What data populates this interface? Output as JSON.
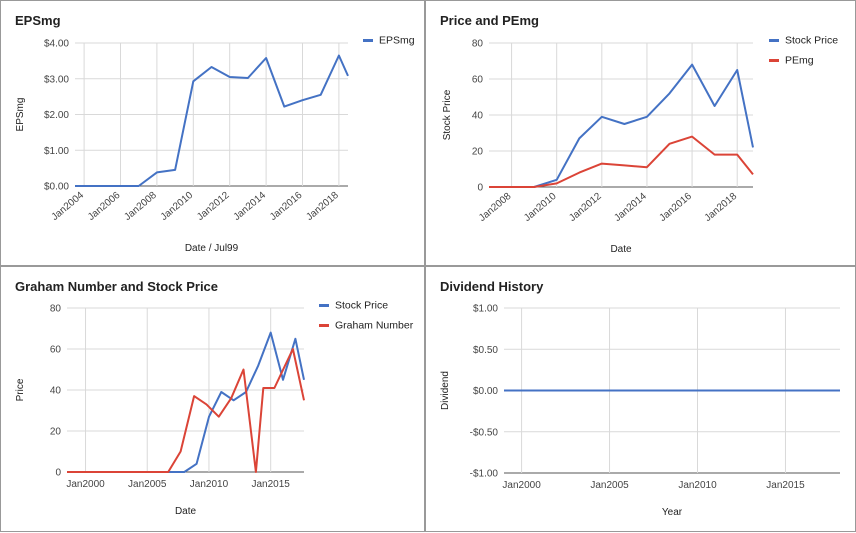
{
  "chart_data": [
    {
      "type": "line",
      "title": "EPSmg",
      "xlabel": "Date / Jul99",
      "ylabel": "EPSmg",
      "x_ticks": [
        "Jan2004",
        "Jan2006",
        "Jan2008",
        "Jan2010",
        "Jan2012",
        "Jan2014",
        "Jan2016",
        "Jan2018"
      ],
      "x_range": [
        2003.5,
        2018.5
      ],
      "y_ticks": [
        "$0.00",
        "$1.00",
        "$2.00",
        "$3.00",
        "$4.00"
      ],
      "ylim": [
        0,
        4
      ],
      "tick_rotation": "rotated",
      "grid": true,
      "legend_position": "right",
      "series": [
        {
          "name": "EPSmg",
          "color": "#4472C4",
          "x": [
            2003.5,
            2004,
            2005,
            2006,
            2007,
            2008,
            2009,
            2010,
            2011,
            2012,
            2013,
            2014,
            2015,
            2016,
            2017,
            2018,
            2018.5
          ],
          "values": [
            0,
            0,
            0,
            0,
            0,
            0.38,
            0.45,
            2.93,
            3.33,
            3.05,
            3.02,
            3.58,
            2.22,
            2.4,
            2.55,
            3.65,
            3.08
          ]
        }
      ]
    },
    {
      "type": "line",
      "title": "Price and PEmg",
      "xlabel": "Date",
      "ylabel": "Stock Price",
      "x_ticks": [
        "Jan2008",
        "Jan2010",
        "Jan2012",
        "Jan2014",
        "Jan2016",
        "Jan2018"
      ],
      "x_range": [
        2007,
        2018.7
      ],
      "y_ticks": [
        "0",
        "20",
        "40",
        "60",
        "80"
      ],
      "ylim": [
        0,
        80
      ],
      "tick_rotation": "rotated",
      "grid": true,
      "legend_position": "right",
      "series": [
        {
          "name": "Stock Price",
          "color": "#4472C4",
          "x": [
            2007,
            2008,
            2009,
            2010,
            2011,
            2012,
            2013,
            2014,
            2015,
            2016,
            2017,
            2018,
            2018.7
          ],
          "values": [
            0,
            0,
            0,
            4,
            27,
            39,
            35,
            39,
            52,
            68,
            45,
            65,
            22
          ]
        },
        {
          "name": "PEmg",
          "color": "#DB4437",
          "x": [
            2007,
            2008,
            2009,
            2010,
            2011,
            2012,
            2013,
            2014,
            2015,
            2016,
            2017,
            2018,
            2018.7
          ],
          "values": [
            0,
            0,
            0,
            2,
            8,
            13,
            12,
            11,
            24,
            28,
            18,
            18,
            7
          ]
        }
      ]
    },
    {
      "type": "line",
      "title": "Graham Number and Stock Price",
      "xlabel": "Date",
      "ylabel": "Price",
      "x_ticks": [
        "Jan2000",
        "Jan2005",
        "Jan2010",
        "Jan2015"
      ],
      "x_range": [
        1998.5,
        2017.7
      ],
      "y_ticks": [
        "0",
        "20",
        "40",
        "60",
        "80"
      ],
      "ylim": [
        0,
        80
      ],
      "tick_rotation": "none",
      "grid": true,
      "legend_position": "right",
      "series": [
        {
          "name": "Stock Price",
          "color": "#4472C4",
          "x": [
            1998.5,
            2008,
            2009,
            2010,
            2011,
            2012,
            2013,
            2014,
            2015,
            2016,
            2017,
            2017.7
          ],
          "values": [
            0,
            0,
            4,
            27,
            39,
            35,
            39,
            52,
            68,
            45,
            65,
            45
          ]
        },
        {
          "name": "Graham Number",
          "color": "#DB4437",
          "x": [
            1998.5,
            2006.7,
            2007.7,
            2008.8,
            2009.8,
            2010.8,
            2011.8,
            2012.8,
            2013.8,
            2014.4,
            2015.3,
            2016.8,
            2017.7
          ],
          "values": [
            0,
            0,
            10,
            37,
            33,
            27,
            36,
            50,
            0,
            41,
            41,
            60,
            35
          ]
        }
      ]
    },
    {
      "type": "line",
      "title": "Dividend History",
      "xlabel": "Year",
      "ylabel": "Dividend",
      "x_ticks": [
        "Jan2000",
        "Jan2005",
        "Jan2010",
        "Jan2015"
      ],
      "x_range": [
        1999,
        2018.1
      ],
      "y_ticks": [
        "-$1.00",
        "-$0.50",
        "$0.00",
        "$0.50",
        "$1.00"
      ],
      "ylim": [
        -1,
        1
      ],
      "tick_rotation": "none",
      "grid": true,
      "legend_position": "none",
      "series": [
        {
          "name": "",
          "color": "#4472C4",
          "x": [
            1999,
            2018.1
          ],
          "values": [
            0,
            0
          ]
        }
      ]
    }
  ]
}
